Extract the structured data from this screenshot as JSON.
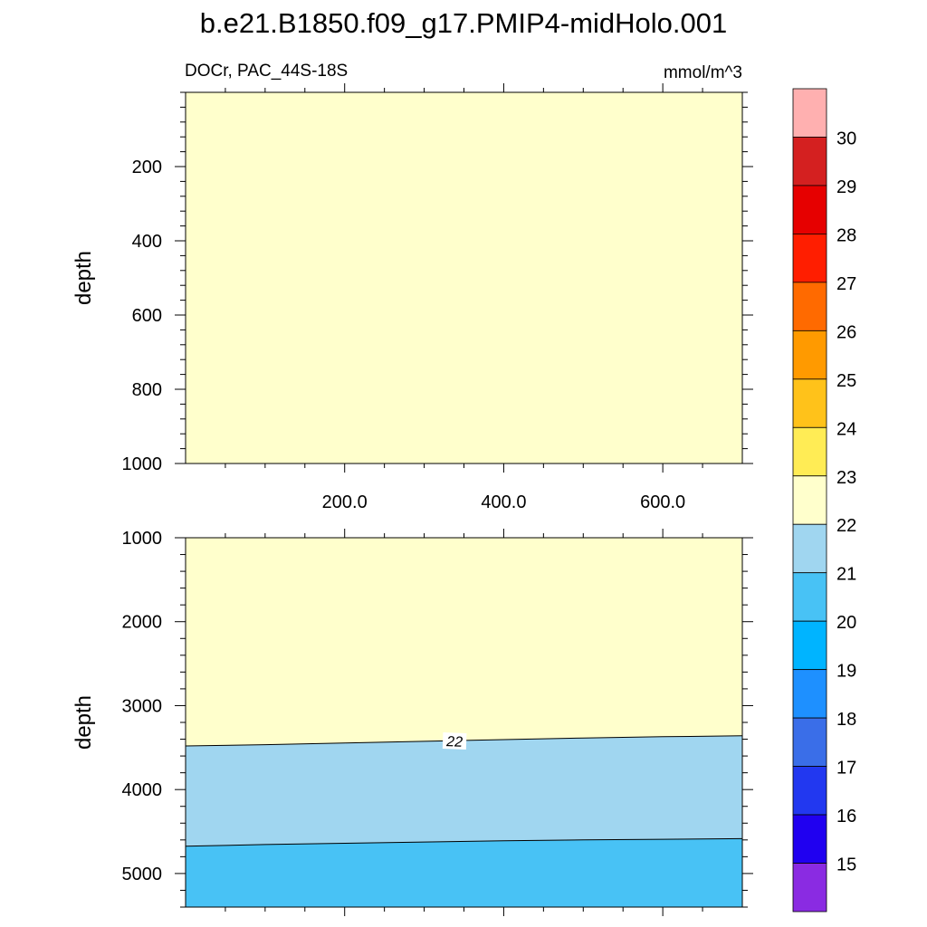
{
  "chart_data": [
    {
      "type": "contour",
      "title": "b.e21.B1850.f09_g17.PMIP4-midHolo.001",
      "left_label": "DOCr, PAC_44S-18S",
      "right_label": "mmol/m^3",
      "ylabel": "depth",
      "xlim": [
        0,
        700
      ],
      "ylim": [
        1000,
        0
      ],
      "x_ticks": [
        200,
        400,
        600
      ],
      "x_tick_labels": [
        "200.0",
        "400.0",
        "600.0"
      ],
      "y_ticks": [
        200,
        400,
        600,
        800,
        1000
      ],
      "y_tick_labels": [
        "200",
        "400",
        "600",
        "800",
        "1000"
      ],
      "fill_color": "#ffffcc",
      "interval": "22-23"
    },
    {
      "type": "contour",
      "ylabel": "depth",
      "xlim": [
        0,
        700
      ],
      "ylim": [
        5400,
        1000
      ],
      "y_ticks": [
        1000,
        2000,
        3000,
        4000,
        5000
      ],
      "y_tick_labels": [
        "1000",
        "2000",
        "3000",
        "4000",
        "5000"
      ],
      "contour_lines": [
        {
          "level": 22,
          "label": "22",
          "label_x": 320,
          "x": [
            0,
            100,
            200,
            300,
            400,
            500,
            600,
            700
          ],
          "depth": [
            3480,
            3465,
            3445,
            3425,
            3405,
            3385,
            3370,
            3360
          ]
        },
        {
          "level": 21,
          "x": [
            0,
            100,
            200,
            300,
            400,
            500,
            600,
            700
          ],
          "depth": [
            4675,
            4655,
            4640,
            4625,
            4610,
            4600,
            4592,
            4585
          ]
        }
      ],
      "regions": [
        {
          "interval": "22-23",
          "color": "#ffffcc"
        },
        {
          "interval": "21-22",
          "color": "#a0d6f0"
        },
        {
          "interval": "20-21",
          "color": "#48c2f5"
        }
      ]
    }
  ],
  "colorbar": {
    "labels": [
      "15",
      "16",
      "17",
      "18",
      "19",
      "20",
      "21",
      "22",
      "23",
      "24",
      "25",
      "26",
      "27",
      "28",
      "29",
      "30"
    ],
    "colors": [
      "#8a2be2",
      "#2000f0",
      "#2238f0",
      "#3a6ee8",
      "#1e90ff",
      "#00b4ff",
      "#48c2f5",
      "#a0d6f0",
      "#ffffcc",
      "#ffec55",
      "#ffc21a",
      "#ff9a00",
      "#ff6a00",
      "#ff1e00",
      "#e60000",
      "#d42020",
      "#ffb0b0"
    ]
  }
}
